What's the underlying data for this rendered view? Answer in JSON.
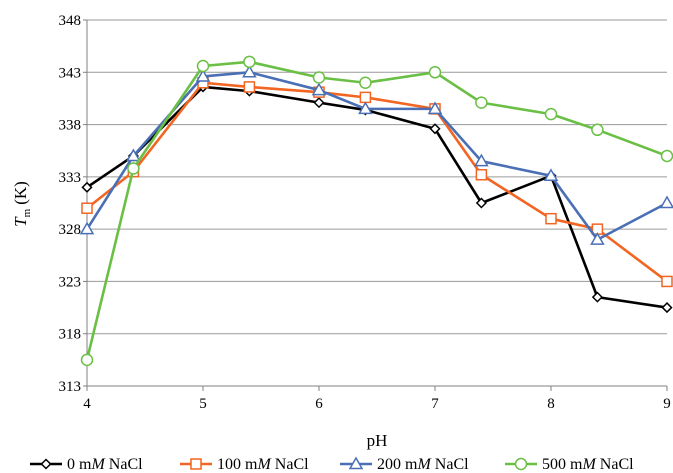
{
  "chart_data": {
    "type": "line",
    "xlabel": "pH",
    "ylabel": "T",
    "ylabel_sub": "m",
    "ylabel_unit": "(K)",
    "xlim": [
      4,
      9
    ],
    "ylim": [
      313,
      348
    ],
    "x_ticks": [
      4,
      5,
      6,
      7,
      8,
      9
    ],
    "y_ticks": [
      313,
      318,
      323,
      328,
      333,
      338,
      343,
      348
    ],
    "grid": "horizontal",
    "legend_position": "bottom",
    "x": [
      4,
      4.4,
      5,
      5.4,
      6,
      6.4,
      7,
      7.4,
      8,
      8.4,
      9
    ],
    "series": [
      {
        "name": "0 mM NaCl",
        "name_parts": [
          "0 m",
          "M",
          " NaCl"
        ],
        "color": "#000000",
        "marker": "diamond",
        "values": [
          332,
          335,
          341.6,
          341.2,
          340.1,
          339.4,
          337.6,
          330.5,
          333.1,
          321.5,
          320.5
        ]
      },
      {
        "name": "100 mM NaCl",
        "name_parts": [
          "100 m",
          "M",
          " NaCl"
        ],
        "color": "#f26522",
        "marker": "square",
        "values": [
          330,
          333.5,
          342,
          341.6,
          341.1,
          340.6,
          339.5,
          333.2,
          329,
          328,
          323
        ]
      },
      {
        "name": "200 mM NaCl",
        "name_parts": [
          "200 m",
          "M",
          " NaCl"
        ],
        "color": "#4a6fb5",
        "marker": "triangle",
        "values": [
          328,
          335,
          342.6,
          343,
          341.3,
          339.5,
          339.5,
          334.5,
          333.1,
          327,
          330.5
        ]
      },
      {
        "name": "500 mM NaCl",
        "name_parts": [
          "500 m",
          "M",
          " NaCl"
        ],
        "color": "#6abf45",
        "marker": "circle",
        "values": [
          315.5,
          333.8,
          343.6,
          344,
          342.5,
          342,
          343,
          340.1,
          339,
          337.5,
          335
        ]
      }
    ]
  }
}
